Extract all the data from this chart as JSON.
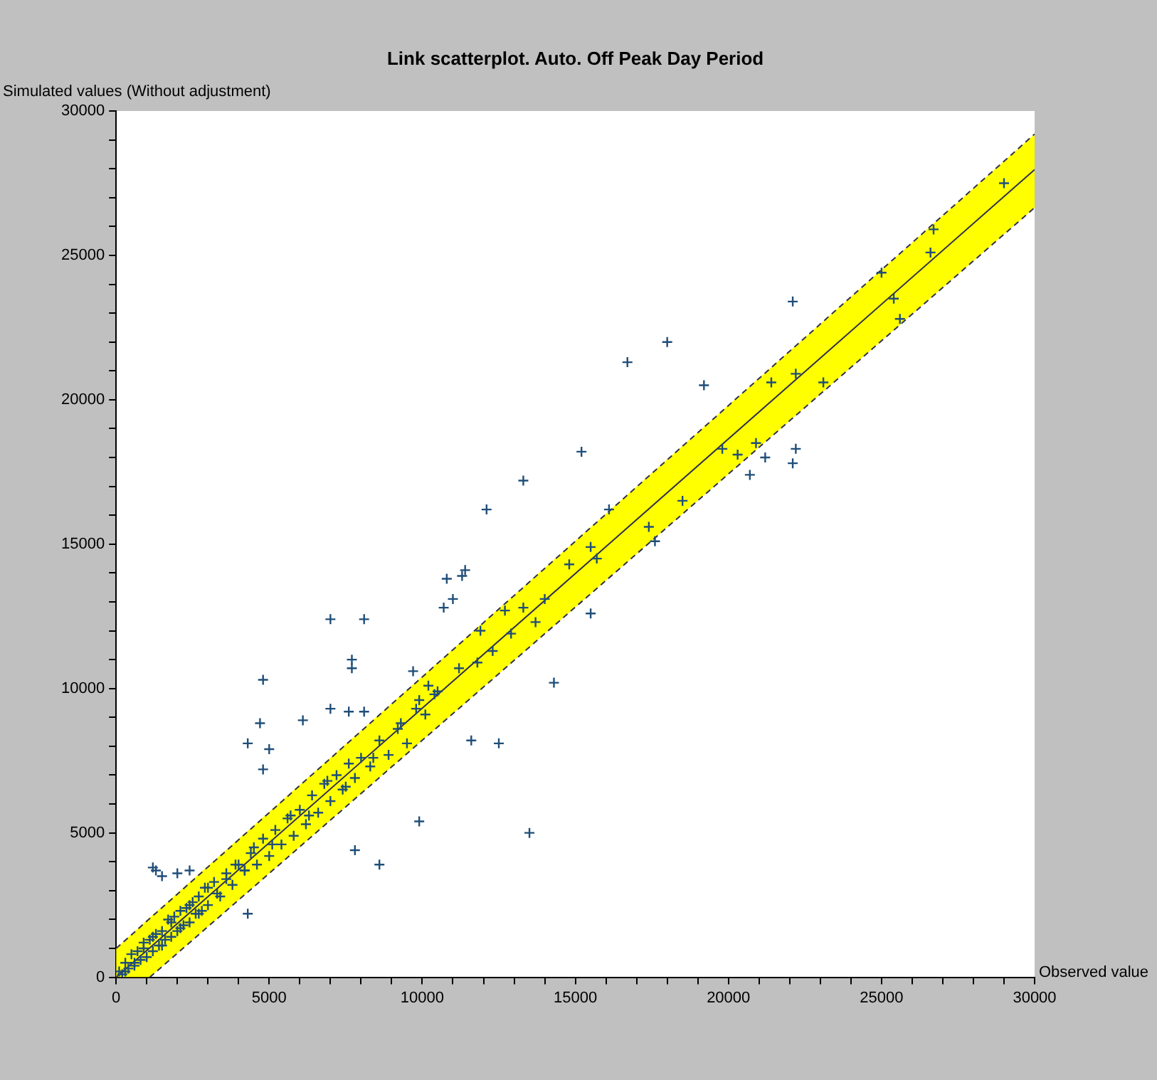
{
  "chart_data": {
    "type": "scatter",
    "title": "Link scatterplot. Auto. Off Peak Day Period",
    "xlabel": "Observed value",
    "ylabel": "Simulated values (Without adjustment)",
    "xlim": [
      0,
      30000
    ],
    "ylim": [
      0,
      30000
    ],
    "xticks": [
      0,
      {
        "value": 1000,
        "label": null
      },
      {
        "value": 2000,
        "label": null
      },
      {
        "value": 3000,
        "label": null
      },
      {
        "value": 4000,
        "label": null
      },
      5000,
      {
        "value": 6000,
        "label": null
      },
      {
        "value": 7000,
        "label": null
      },
      {
        "value": 8000,
        "label": null
      },
      {
        "value": 9000,
        "label": null
      },
      10000,
      {
        "value": 11000,
        "label": null
      },
      {
        "value": 12000,
        "label": null
      },
      {
        "value": 13000,
        "label": null
      },
      {
        "value": 14000,
        "label": null
      },
      15000,
      {
        "value": 16000,
        "label": null
      },
      {
        "value": 17000,
        "label": null
      },
      {
        "value": 18000,
        "label": null
      },
      {
        "value": 19000,
        "label": null
      },
      20000,
      {
        "value": 21000,
        "label": null
      },
      {
        "value": 22000,
        "label": null
      },
      {
        "value": 23000,
        "label": null
      },
      {
        "value": 24000,
        "label": null
      },
      25000,
      {
        "value": 26000,
        "label": null
      },
      {
        "value": 27000,
        "label": null
      },
      {
        "value": 28000,
        "label": null
      },
      {
        "value": 29000,
        "label": null
      },
      30000
    ],
    "yticks": [
      0,
      {
        "value": 1000,
        "label": null
      },
      {
        "value": 2000,
        "label": null
      },
      {
        "value": 3000,
        "label": null
      },
      {
        "value": 4000,
        "label": null
      },
      5000,
      {
        "value": 6000,
        "label": null
      },
      {
        "value": 7000,
        "label": null
      },
      {
        "value": 8000,
        "label": null
      },
      {
        "value": 9000,
        "label": null
      },
      10000,
      {
        "value": 11000,
        "label": null
      },
      {
        "value": 12000,
        "label": null
      },
      {
        "value": 13000,
        "label": null
      },
      {
        "value": 14000,
        "label": null
      },
      15000,
      {
        "value": 16000,
        "label": null
      },
      {
        "value": 17000,
        "label": null
      },
      {
        "value": 18000,
        "label": null
      },
      {
        "value": 19000,
        "label": null
      },
      20000,
      {
        "value": 21000,
        "label": null
      },
      {
        "value": 22000,
        "label": null
      },
      {
        "value": 23000,
        "label": null
      },
      {
        "value": 24000,
        "label": null
      },
      25000,
      {
        "value": 26000,
        "label": null
      },
      {
        "value": 27000,
        "label": null
      },
      {
        "value": 28000,
        "label": null
      },
      {
        "value": 29000,
        "label": null
      },
      30000
    ],
    "grid": false,
    "marker": "cross",
    "series": [
      {
        "type": "line",
        "color": "#303050",
        "marker": "none",
        "x": [
          0,
          1100,
          30000
        ],
        "values": [
          0,
          1020,
          27970
        ],
        "lower": [
          0,
          0,
          26650
        ],
        "upper": [
          1000,
          2070,
          29200
        ]
      },
      {
        "type": "line",
        "color": "#303050",
        "marker": "none",
        "line_style": "dashed",
        "x": [
          0,
          30000
        ],
        "values": [
          1000,
          29200
        ]
      },
      {
        "type": "line",
        "color": "#303050",
        "marker": "none",
        "line_style": "dashed",
        "x": [
          1100,
          30000
        ],
        "values": [
          0,
          26650
        ]
      },
      {
        "type": "scatter",
        "color": "#1f4e79",
        "x": [
          16700,
          18000,
          22100,
          19200,
          15200,
          13300,
          12100,
          11400,
          11300,
          10800,
          11000,
          10700,
          13300,
          7000,
          8100,
          7700,
          7700,
          4800,
          9700,
          4300,
          4700,
          6100,
          4800,
          5000,
          7000,
          7600,
          8100,
          1200,
          1300,
          1500,
          2000,
          2400,
          13500,
          9900,
          8600,
          7800,
          4300,
          14300,
          12500,
          11600,
          15500,
          17600,
          17400,
          20700,
          22100,
          22200,
          21200,
          20300,
          23100,
          25600,
          18500,
          15700,
          25000,
          26600,
          26700,
          29000,
          25400,
          22200,
          21400,
          20900,
          19800,
          14800,
          15500,
          16100,
          11900,
          12700,
          13700,
          10200,
          9900,
          11200,
          12300,
          100,
          200,
          300,
          400,
          500,
          600,
          700,
          800,
          900,
          1000,
          1100,
          1200,
          1300,
          1400,
          1500,
          1600,
          1700,
          1800,
          1900,
          2000,
          2100,
          2200,
          2300,
          2400,
          2500,
          2600,
          2700,
          2800,
          2900,
          3000,
          3200,
          3400,
          3600,
          3800,
          4000,
          4200,
          4400,
          4600,
          4800,
          5000,
          5200,
          5400,
          5600,
          5800,
          6000,
          6200,
          6400,
          6600,
          6800,
          7000,
          7200,
          7400,
          7600,
          7800,
          8000,
          8300,
          8600,
          8900,
          9200,
          9500,
          9800,
          10100,
          10400,
          300,
          600,
          900,
          1200,
          1500,
          1800,
          2100,
          2400,
          2700,
          3000,
          3300,
          3600,
          3900,
          4200,
          4500,
          5100,
          5700,
          6300,
          6900,
          7500,
          8400,
          9300,
          10500,
          11800,
          12900,
          14000
        ],
        "values": [
          21300,
          22000,
          23400,
          20500,
          18200,
          17200,
          16200,
          14100,
          13900,
          13800,
          13100,
          12800,
          12800,
          12400,
          12400,
          11000,
          10700,
          10300,
          10600,
          8100,
          8800,
          8900,
          7200,
          7900,
          9300,
          9200,
          9200,
          3800,
          3700,
          3500,
          3600,
          3700,
          5000,
          5400,
          3900,
          4400,
          2200,
          10200,
          8100,
          8200,
          12600,
          15100,
          15600,
          17400,
          17800,
          18300,
          18000,
          18100,
          20600,
          22800,
          16500,
          14500,
          24400,
          25100,
          25900,
          27500,
          23500,
          20900,
          20600,
          18500,
          18300,
          14300,
          14900,
          16200,
          12000,
          12700,
          12300,
          10100,
          9600,
          10700,
          11300,
          200,
          100,
          500,
          300,
          800,
          400,
          900,
          600,
          1200,
          700,
          1300,
          900,
          1500,
          1100,
          1600,
          1300,
          2000,
          1400,
          2100,
          1600,
          2300,
          1800,
          2400,
          1900,
          2600,
          2200,
          2800,
          2300,
          3100,
          2500,
          3300,
          2800,
          3600,
          3200,
          3900,
          3700,
          4300,
          3900,
          4800,
          4200,
          5100,
          4600,
          5500,
          4900,
          5800,
          5300,
          6300,
          5700,
          6700,
          6100,
          7000,
          6500,
          7400,
          6900,
          7600,
          7300,
          8200,
          7700,
          8600,
          8100,
          9300,
          9100,
          9800,
          200,
          500,
          1000,
          1400,
          1100,
          1900,
          1700,
          2500,
          2200,
          3100,
          2900,
          3400,
          3900,
          3700,
          4500,
          4600,
          5600,
          5600,
          6800,
          6600,
          7600,
          8800,
          9900,
          10900,
          11900,
          13100
        ]
      }
    ]
  }
}
